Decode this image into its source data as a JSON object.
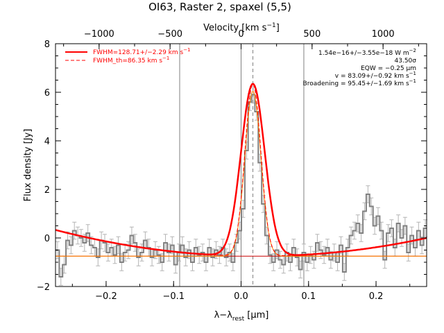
{
  "chart_data": {
    "type": "line",
    "title": "OI63, Raster 2, spaxel (5,5)",
    "xlabel": "λ−λ",
    "xlabel_sub": "rest",
    "xlabel_unit": " [μm]",
    "ylabel": "Flux density [Jy]",
    "top_axis_label": "Velocity [km s",
    "top_axis_label_sup": "−1",
    "top_axis_label_end": "]",
    "xlim": [
      -0.275,
      0.275
    ],
    "ylim": [
      -2.0,
      8.0
    ],
    "velocity_lim": [
      -1307,
      1307
    ],
    "x_ticks": [
      -0.2,
      -0.1,
      0.0,
      0.1,
      0.2
    ],
    "x_tick_labels": [
      "−0.2",
      "−0.1",
      "0.0",
      "0.1",
      "0.2"
    ],
    "y_ticks": [
      -2,
      0,
      2,
      4,
      6,
      8
    ],
    "y_tick_labels": [
      "−2",
      "0",
      "2",
      "4",
      "6",
      "8"
    ],
    "velocity_ticks": [
      -1000,
      -500,
      0,
      500,
      1000
    ],
    "velocity_tick_labels": [
      "−1000",
      "−500",
      "0",
      "500",
      "1000"
    ],
    "vertical_lines": [
      -0.091,
      0.0,
      0.093
    ],
    "center_line": 0.0175,
    "grid": false,
    "legend_position": "top-left",
    "legend": [
      {
        "label": "FWHM=128.71+/−2.29 km s",
        "sup": "−1",
        "style": "solid"
      },
      {
        "label": "FWHM_th=86.35 km s",
        "sup": "−1",
        "style": "dashed"
      }
    ],
    "annotations": [
      {
        "text": "1.54e−16+/−3.55e−18 W m",
        "sup": "−2"
      },
      {
        "text": "43.50σ",
        "sup": ""
      },
      {
        "text": "EQW = −0.25 μm",
        "sup": ""
      },
      {
        "text": "v = 83.09+/−0.92 km s",
        "sup": "−1"
      },
      {
        "text": "Broadening = 95.45+/−1.69 km s",
        "sup": "−1"
      }
    ],
    "series": [
      {
        "name": "data",
        "x": [
          -0.272,
          -0.267,
          -0.262,
          -0.257,
          -0.252,
          -0.247,
          -0.242,
          -0.237,
          -0.232,
          -0.227,
          -0.222,
          -0.217,
          -0.212,
          -0.207,
          -0.202,
          -0.197,
          -0.192,
          -0.187,
          -0.182,
          -0.177,
          -0.172,
          -0.167,
          -0.162,
          -0.157,
          -0.152,
          -0.147,
          -0.142,
          -0.137,
          -0.132,
          -0.127,
          -0.122,
          -0.117,
          -0.112,
          -0.107,
          -0.102,
          -0.097,
          -0.092,
          -0.087,
          -0.082,
          -0.077,
          -0.072,
          -0.067,
          -0.062,
          -0.057,
          -0.052,
          -0.047,
          -0.042,
          -0.037,
          -0.032,
          -0.027,
          -0.022,
          -0.017,
          -0.012,
          -0.007,
          -0.002,
          0.003,
          0.008,
          0.013,
          0.018,
          0.023,
          0.028,
          0.033,
          0.038,
          0.043,
          0.048,
          0.053,
          0.058,
          0.063,
          0.068,
          0.073,
          0.078,
          0.083,
          0.088,
          0.093,
          0.098,
          0.103,
          0.108,
          0.113,
          0.118,
          0.123,
          0.128,
          0.133,
          0.138,
          0.143,
          0.148,
          0.153,
          0.158,
          0.163,
          0.168,
          0.173,
          0.178,
          0.183,
          0.188,
          0.193,
          0.198,
          0.203,
          0.208,
          0.213,
          0.218,
          0.223,
          0.228,
          0.233,
          0.238,
          0.243,
          0.248,
          0.253,
          0.258,
          0.263,
          0.268,
          0.273
        ],
        "y": [
          -0.5,
          -1.6,
          -1.1,
          -0.1,
          -0.3,
          0.3,
          0.1,
          0.0,
          -0.2,
          0.2,
          -0.3,
          -0.4,
          -0.8,
          -0.1,
          -0.2,
          -0.6,
          -0.4,
          -0.7,
          -0.3,
          -1.0,
          -0.6,
          -0.5,
          0.1,
          -0.2,
          -0.8,
          -0.6,
          -0.1,
          -0.4,
          -0.8,
          -0.5,
          -0.7,
          -1.0,
          -0.2,
          -0.6,
          -0.3,
          -1.1,
          -0.6,
          -0.3,
          -0.8,
          -0.5,
          -1.0,
          -0.4,
          -0.7,
          -0.6,
          -1.0,
          -0.4,
          -0.8,
          -0.5,
          -0.7,
          -0.4,
          -0.8,
          -0.6,
          -1.0,
          -0.2,
          0.3,
          1.2,
          3.6,
          5.6,
          5.9,
          5.2,
          3.1,
          1.4,
          0.1,
          -0.7,
          -1.0,
          -0.5,
          -0.9,
          -1.1,
          -0.6,
          -1.0,
          -0.4,
          -0.8,
          -1.3,
          -0.6,
          -1.0,
          -0.7,
          -0.9,
          -0.2,
          -0.5,
          -0.7,
          -0.4,
          -0.9,
          -0.6,
          -1.0,
          -0.3,
          -1.4,
          -0.4,
          0.1,
          0.3,
          0.6,
          0.2,
          1.1,
          1.8,
          1.3,
          0.5,
          0.9,
          0.3,
          -0.9,
          0.2,
          0.4,
          -0.4,
          0.6,
          0.0,
          0.5,
          -0.6,
          0.1,
          -0.4,
          0.3,
          -0.3,
          0.4
        ],
        "error": 0.35
      },
      {
        "name": "fit",
        "style": "solid"
      },
      {
        "name": "fit_th",
        "style": "dashed"
      }
    ],
    "colors": {
      "data": "#808080",
      "error_bars": "#b4b4b4",
      "fit": "#ff0000",
      "fit_th": "#ff0000",
      "component": "#ff8c00",
      "baseline": "#c80000",
      "vertical_line": "#808080"
    }
  }
}
